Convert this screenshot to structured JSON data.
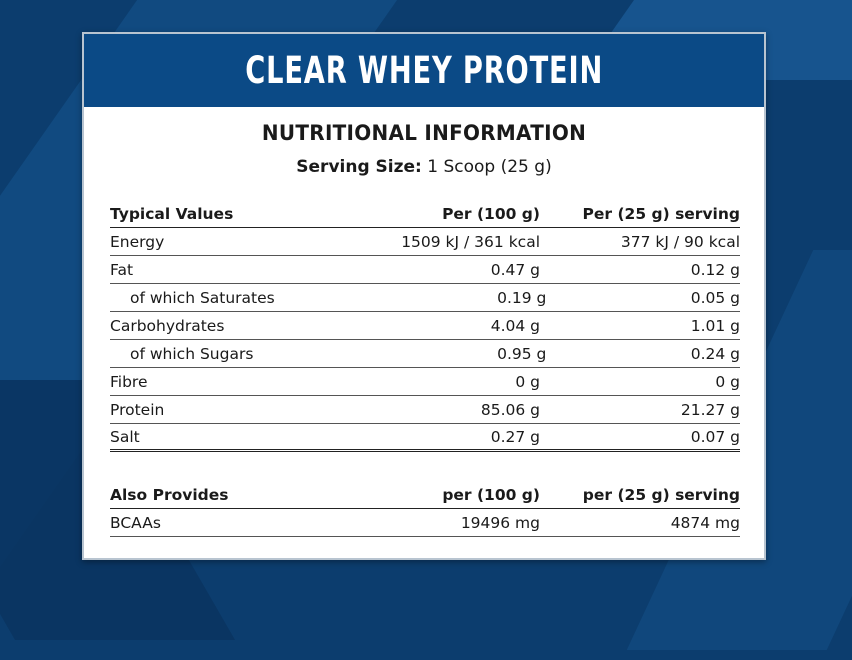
{
  "product_title": "CLEAR WHEY PROTEIN",
  "section_title": "NUTRITIONAL INFORMATION",
  "serving": {
    "label": "Serving Size:",
    "value": "1 Scoop (25 g)"
  },
  "table": {
    "headers": [
      "Typical Values",
      "Per (100 g)",
      "Per (25 g) serving"
    ],
    "rows": [
      {
        "name": "Energy",
        "per100": "1509 kJ / 361 kcal",
        "perServing": "377 kJ / 90 kcal"
      },
      {
        "name": "Fat",
        "per100": "0.47 g",
        "perServing": "0.12 g"
      },
      {
        "name": "of which Saturates",
        "per100": "0.19 g",
        "perServing": "0.05 g"
      },
      {
        "name": "Carbohydrates",
        "per100": "4.04 g",
        "perServing": "1.01 g"
      },
      {
        "name": "of which Sugars",
        "per100": "0.95 g",
        "perServing": "0.24 g"
      },
      {
        "name": "Fibre",
        "per100": "0 g",
        "perServing": "0 g"
      },
      {
        "name": "Protein",
        "per100": "85.06 g",
        "perServing": "21.27 g"
      },
      {
        "name": "Salt",
        "per100": "0.27 g",
        "perServing": "0.07 g"
      }
    ]
  },
  "also": {
    "headers": [
      "Also Provides",
      "per (100 g)",
      "per (25 g) serving"
    ],
    "rows": [
      {
        "name": "BCAAs",
        "per100": "19496 mg",
        "perServing": "4874 mg"
      }
    ]
  }
}
